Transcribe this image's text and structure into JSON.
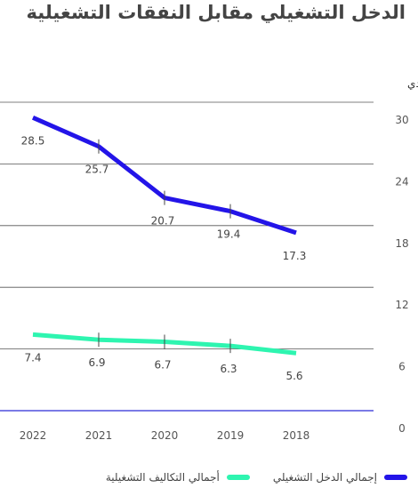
{
  "chart_data": {
    "type": "line",
    "title": "الدخل التشغيلي مقابل النفقات التشغيلية",
    "unit_label": "مليار ريال سعودي",
    "categories": [
      "2018",
      "2019",
      "2020",
      "2021",
      "2022"
    ],
    "y_ticks": [
      0,
      6,
      12,
      18,
      24,
      30
    ],
    "ylim": [
      0,
      30
    ],
    "series": [
      {
        "name": "إجمالي الدخل التشغيلي",
        "color": "#2314e8",
        "values": [
          17.3,
          19.4,
          20.7,
          25.7,
          28.5
        ],
        "labels": [
          "17.3",
          "19.4",
          "20.7",
          "25.7",
          "28.5"
        ]
      },
      {
        "name": "أجمالي التكاليف التشغيلية",
        "color": "#2ef5b0",
        "values": [
          5.6,
          6.3,
          6.7,
          6.9,
          7.4
        ],
        "labels": [
          "5.6",
          "6.3",
          "6.7",
          "6.9",
          "7.4"
        ]
      }
    ],
    "grid": true,
    "legend_position": "bottom",
    "baseline_color": "#2a2ad8"
  }
}
